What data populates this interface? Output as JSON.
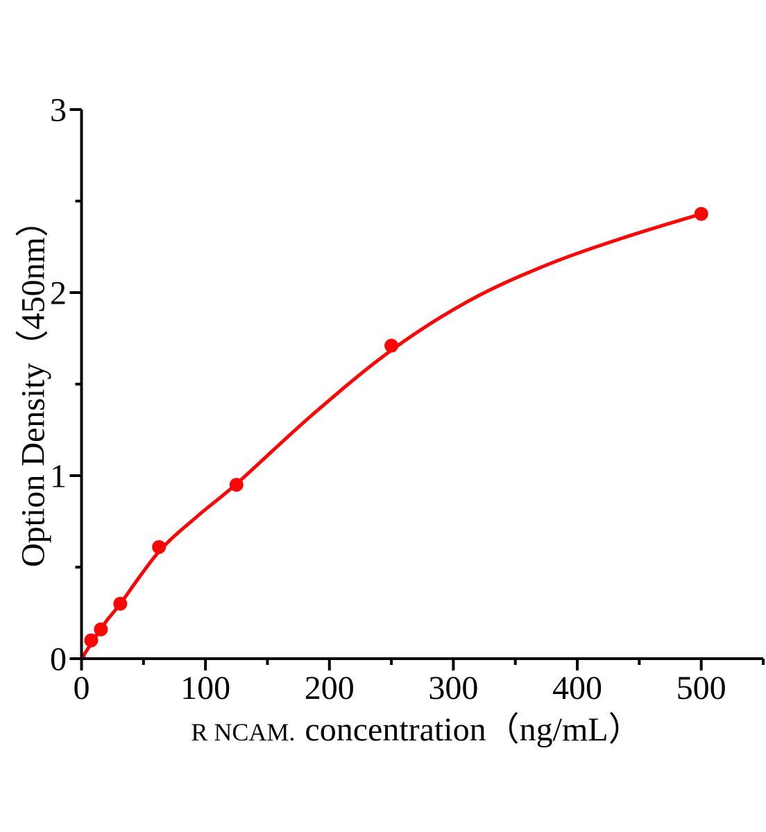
{
  "chart_data": {
    "type": "scatter",
    "title": "",
    "xlabel_prefix": "R NCAM.",
    "xlabel_main": "concentration（ng/mL）",
    "ylabel": "Option Density（450nm）",
    "xlim": [
      0,
      550
    ],
    "ylim": [
      0,
      3
    ],
    "x_major_ticks": [
      0,
      100,
      200,
      300,
      400,
      500
    ],
    "x_minor_ticks": [
      50,
      150,
      250,
      350,
      450,
      550
    ],
    "y_major_ticks": [
      0,
      1,
      2,
      3
    ],
    "y_minor_ticks": [
      0.5,
      1.5,
      2.5
    ],
    "grid": false,
    "legend": false,
    "axis_color": "#000000",
    "accent_color": "#fa0606",
    "series": [
      {
        "name": "standard-points",
        "type": "scatter",
        "color": "#fa0606",
        "marker_radius": 10,
        "points": [
          [
            0,
            0
          ],
          [
            7.8,
            0.1
          ],
          [
            15.6,
            0.16
          ],
          [
            31.25,
            0.3
          ],
          [
            62.5,
            0.61
          ],
          [
            125,
            0.95
          ],
          [
            250,
            1.71
          ],
          [
            500,
            2.43
          ]
        ]
      },
      {
        "name": "fitted-curve",
        "type": "line",
        "color": "#fa0606",
        "stroke_width": 5,
        "points": [
          [
            0,
            0
          ],
          [
            10,
            0.105
          ],
          [
            20,
            0.205
          ],
          [
            31.25,
            0.3
          ],
          [
            62.5,
            0.585
          ],
          [
            93.75,
            0.78
          ],
          [
            125,
            0.955
          ],
          [
            187.5,
            1.34
          ],
          [
            250,
            1.685
          ],
          [
            312.5,
            1.955
          ],
          [
            375,
            2.15
          ],
          [
            437.5,
            2.3
          ],
          [
            500,
            2.43
          ]
        ]
      }
    ]
  }
}
